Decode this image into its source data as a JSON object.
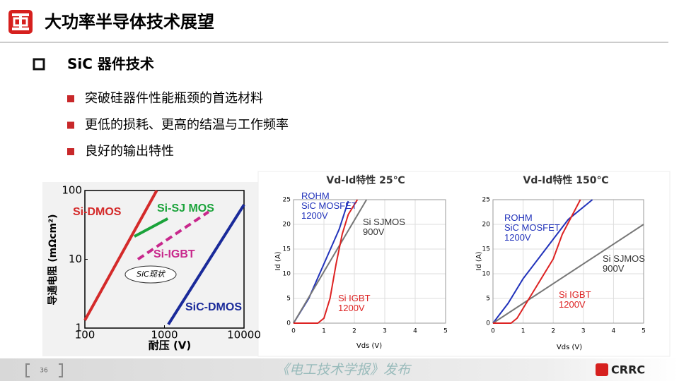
{
  "header": {
    "title": "大功率半导体技术展望"
  },
  "section": {
    "title": "SiC 器件技术",
    "bullets": [
      "突破硅器件性能瓶颈的首选材料",
      "更低的损耗、更高的结温与工作频率",
      "良好的输出特性"
    ]
  },
  "chart_data": [
    {
      "type": "line",
      "xscale": "log",
      "yscale": "log",
      "x_label": "耐压 (V)",
      "y_label": "导通电阻 (mΩcm²)",
      "xlim": [
        100,
        10000
      ],
      "ylim": [
        1,
        100
      ],
      "xticks": [
        100,
        1000,
        10000
      ],
      "yticks": [
        1,
        10,
        100
      ],
      "grid": false,
      "annotation": "SiC现状",
      "series": [
        {
          "name": "Si-DMOS",
          "color": "#d42a2a",
          "x": [
            100,
            800
          ],
          "values": [
            1.3,
            100
          ]
        },
        {
          "name": "Si-SJ MOS",
          "color": "#1aa33a",
          "x": [
            419,
            1100
          ],
          "values": [
            21.5,
            39
          ]
        },
        {
          "name": "Si-IGBT",
          "color": "#c8288c",
          "dash": true,
          "x": [
            464,
            3590
          ],
          "values": [
            10,
            49
          ]
        },
        {
          "name": "SiC-DMOS",
          "color": "#1a2a9a",
          "x": [
            1120,
            10000
          ],
          "values": [
            1.13,
            62
          ]
        }
      ]
    },
    {
      "type": "line",
      "title": "Vd-Id特性 25℃",
      "x_label": "Vds (V)",
      "y_label": "Id (A)",
      "xlim": [
        0,
        5
      ],
      "ylim": [
        0,
        25
      ],
      "xticks": [
        0,
        1,
        2,
        3,
        4,
        5
      ],
      "yticks": [
        0,
        5,
        10,
        15,
        20,
        25
      ],
      "grid": true,
      "series": [
        {
          "name": "ROHM\nSiC MOSFET\n1200V",
          "color": "#2233bb",
          "x": [
            0,
            0.5,
            1,
            1.5,
            1.8
          ],
          "values": [
            0,
            5,
            12,
            19,
            24.7
          ]
        },
        {
          "name": "Si SJMOS\n900V",
          "color": "#777777",
          "x": [
            0,
            2.4
          ],
          "values": [
            0,
            25
          ]
        },
        {
          "name": "Si IGBT\n1200V",
          "color": "#dd2222",
          "x": [
            0,
            0.8,
            1,
            1.2,
            1.4,
            1.6,
            1.8,
            2.1
          ],
          "values": [
            0,
            0,
            1,
            5,
            12,
            18,
            22,
            25
          ]
        }
      ]
    },
    {
      "type": "line",
      "title": "Vd-Id特性 150℃",
      "x_label": "Vds (V)",
      "y_label": "Id (A)",
      "xlim": [
        0,
        5
      ],
      "ylim": [
        0,
        25
      ],
      "xticks": [
        0,
        1,
        2,
        3,
        4,
        5
      ],
      "yticks": [
        0,
        5,
        10,
        15,
        20,
        25
      ],
      "grid": true,
      "series": [
        {
          "name": "ROHM\nSiC MOSFET\n1200V",
          "color": "#2233bb",
          "x": [
            0,
            0.5,
            1,
            1.5,
            2,
            2.5,
            3.3
          ],
          "values": [
            0,
            4,
            9,
            13,
            17,
            21,
            25
          ]
        },
        {
          "name": "Si SJMOS\n900V",
          "color": "#777777",
          "x": [
            0,
            5
          ],
          "values": [
            0,
            20
          ]
        },
        {
          "name": "Si IGBT\n1200V",
          "color": "#dd2222",
          "x": [
            0,
            0.6,
            0.8,
            1,
            1.5,
            2,
            2.3,
            2.9
          ],
          "values": [
            0,
            0,
            1,
            3,
            8,
            13,
            18,
            25
          ]
        }
      ]
    }
  ],
  "footer": {
    "page": "36",
    "watermark": "《电工技术学报》发布",
    "brand": "CRRC"
  }
}
